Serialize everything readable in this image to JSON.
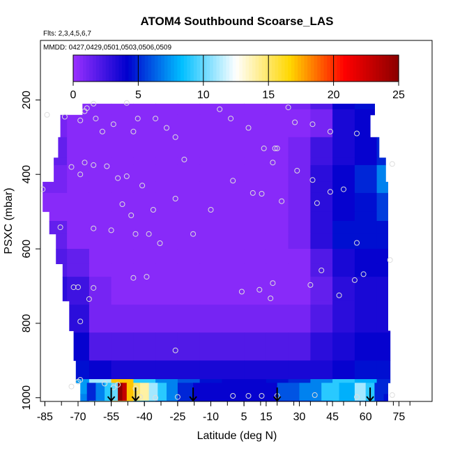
{
  "chart_data": {
    "type": "heatmap",
    "title": "ATOM4 Southbound Scoarse_LAS",
    "flights_note": "Flts: 2,3,4,5,6,7",
    "dates_note": "MMDD: 0427,0429,0501,0503,0506,0509",
    "xlabel": "Latitude (deg N)",
    "ylabel": "PSXC (mbar)",
    "xlim": [
      -87,
      90
    ],
    "ylim": [
      1010,
      40
    ],
    "x_ticks": [
      -85,
      -70,
      -55,
      -40,
      -25,
      -10,
      5,
      15,
      30,
      45,
      60,
      75
    ],
    "x_tick_labels": [
      "-85",
      "-70",
      "-55",
      "-40",
      "-25",
      "-10",
      "5",
      "15",
      "30",
      "45",
      "60",
      "75"
    ],
    "y_ticks": [
      200,
      400,
      600,
      800,
      1000
    ],
    "y_tick_labels": [
      "200",
      "400",
      "600",
      "800",
      "1000"
    ],
    "colorbar": {
      "min": 0,
      "max": 25,
      "ticks": [
        0,
        5,
        10,
        15,
        20,
        25
      ],
      "tick_labels": [
        "0",
        "5",
        "10",
        "15",
        "20",
        "25"
      ],
      "colors": [
        "#9b30ff",
        "#0000cd",
        "#00bfff",
        "#ffffff",
        "#ffd700",
        "#ff0000",
        "#8b0000"
      ]
    },
    "lat_bin_edges": [
      -87,
      -75,
      -65,
      -55,
      -45,
      -35,
      -25,
      -15,
      -5,
      5,
      15,
      25,
      35,
      45,
      55,
      65,
      72
    ],
    "pressure_bin_edges": [
      160,
      225,
      300,
      375,
      450,
      525,
      600,
      675,
      750,
      825,
      900,
      950,
      990,
      1010
    ],
    "profile_edges": [
      {
        "lat_min": -68,
        "lat_max": 64,
        "p_min": 210,
        "p_max": 240
      },
      {
        "lat_min": -78,
        "lat_max": 62,
        "p_min": 240,
        "p_max": 300
      },
      {
        "lat_min": -79,
        "lat_max": 66,
        "p_min": 300,
        "p_max": 355
      },
      {
        "lat_min": -81,
        "lat_max": 69,
        "p_min": 355,
        "p_max": 420
      },
      {
        "lat_min": -86,
        "lat_max": 70,
        "p_min": 420,
        "p_max": 500
      },
      {
        "lat_min": -83,
        "lat_max": 70,
        "p_min": 500,
        "p_max": 560
      },
      {
        "lat_min": -80,
        "lat_max": 70,
        "p_min": 560,
        "p_max": 640
      },
      {
        "lat_min": -77,
        "lat_max": 70,
        "p_min": 640,
        "p_max": 740
      },
      {
        "lat_min": -74,
        "lat_max": 70,
        "p_min": 740,
        "p_max": 820
      },
      {
        "lat_min": -72,
        "lat_max": 71,
        "p_min": 820,
        "p_max": 900
      },
      {
        "lat_min": -71,
        "lat_max": 71,
        "p_min": 900,
        "p_max": 960
      },
      {
        "lat_min": -69,
        "lat_max": 70,
        "p_min": 960,
        "p_max": 1010
      }
    ],
    "values": [
      [
        0.5,
        0.5,
        0.5,
        0.5,
        0.5,
        0.5,
        0.5,
        0.5,
        0.5,
        0.5,
        0.5,
        1.0,
        2.0,
        4.0,
        4.5,
        4.5
      ],
      [
        1.0,
        0.5,
        0.5,
        0.5,
        0.5,
        0.5,
        0.5,
        0.5,
        0.5,
        0.5,
        0.5,
        0.5,
        1.0,
        3.5,
        4.0,
        4.0
      ],
      [
        1.5,
        0.5,
        0.5,
        0.5,
        0.5,
        0.5,
        0.5,
        0.5,
        0.5,
        0.5,
        0.5,
        1.0,
        2.5,
        3.5,
        4.0,
        5.0
      ],
      [
        1.0,
        0.5,
        0.5,
        0.5,
        0.5,
        0.5,
        0.5,
        0.5,
        0.5,
        0.5,
        0.5,
        1.0,
        3.0,
        4.0,
        5.0,
        7.0
      ],
      [
        0.5,
        0.5,
        0.5,
        0.5,
        0.5,
        0.5,
        0.5,
        0.5,
        0.5,
        0.5,
        0.5,
        1.0,
        3.0,
        4.0,
        4.5,
        5.5
      ],
      [
        1.5,
        0.5,
        0.5,
        0.5,
        0.5,
        0.5,
        0.5,
        0.5,
        0.5,
        0.5,
        0.5,
        1.0,
        3.0,
        4.5,
        4.5,
        4.5
      ],
      [
        2.0,
        1.5,
        0.5,
        0.5,
        0.5,
        0.5,
        0.5,
        0.5,
        0.5,
        0.5,
        0.5,
        0.5,
        2.0,
        3.5,
        4.0,
        4.0
      ],
      [
        3.0,
        2.5,
        1.0,
        0.5,
        0.5,
        0.5,
        0.5,
        0.5,
        0.5,
        0.5,
        0.5,
        0.5,
        1.5,
        3.0,
        3.5,
        3.5
      ],
      [
        4.0,
        3.0,
        1.0,
        1.0,
        1.0,
        1.0,
        1.0,
        1.0,
        1.0,
        1.0,
        1.0,
        1.0,
        2.0,
        3.0,
        3.5,
        3.5
      ],
      [
        4.5,
        4.0,
        2.0,
        2.0,
        2.0,
        2.0,
        2.0,
        2.0,
        2.0,
        2.0,
        2.0,
        2.0,
        3.0,
        3.5,
        4.0,
        4.0
      ],
      [
        5.0,
        4.5,
        4.0,
        3.5,
        3.5,
        3.5,
        3.5,
        3.5,
        3.5,
        3.5,
        3.5,
        3.5,
        3.5,
        4.0,
        4.5,
        4.5
      ],
      [
        7.0,
        7.5,
        11.0,
        17.0,
        9.0,
        7.0,
        6.0,
        4.5,
        4.0,
        4.0,
        4.5,
        5.0,
        7.0,
        9.0,
        8.0,
        5.0
      ],
      [
        6.0,
        7.0,
        10.0,
        15.0,
        8.0,
        6.0,
        5.0,
        4.0,
        4.0,
        4.0,
        4.0,
        4.5,
        6.0,
        8.0,
        7.0,
        4.5
      ]
    ],
    "bottom_strip": [
      {
        "lat": -66,
        "v": 5
      },
      {
        "lat": -62,
        "v": 7
      },
      {
        "lat": -58,
        "v": 9
      },
      {
        "lat": -55,
        "v": 10
      },
      {
        "lat": -52,
        "v": 25
      },
      {
        "lat": -50,
        "v": 23
      },
      {
        "lat": -48,
        "v": 17
      },
      {
        "lat": -45,
        "v": 15
      },
      {
        "lat": -42,
        "v": 14
      },
      {
        "lat": -38,
        "v": 11
      },
      {
        "lat": -34,
        "v": 9
      },
      {
        "lat": -30,
        "v": 7
      },
      {
        "lat": -25,
        "v": 5
      },
      {
        "lat": -18,
        "v": 4
      },
      {
        "lat": -10,
        "v": 4
      },
      {
        "lat": 0,
        "v": 4
      },
      {
        "lat": 10,
        "v": 4
      },
      {
        "lat": 20,
        "v": 6
      },
      {
        "lat": 30,
        "v": 7
      },
      {
        "lat": 40,
        "v": 9
      },
      {
        "lat": 48,
        "v": 8
      },
      {
        "lat": 55,
        "v": 11
      },
      {
        "lat": 60,
        "v": 9
      },
      {
        "lat": 64,
        "v": 5
      },
      {
        "lat": 68,
        "v": 4
      }
    ],
    "sample_points": [
      {
        "lat": -84,
        "p": 240
      },
      {
        "lat": -76,
        "p": 245
      },
      {
        "lat": -69,
        "p": 255
      },
      {
        "lat": -67,
        "p": 230
      },
      {
        "lat": -66,
        "p": 222
      },
      {
        "lat": -63,
        "p": 210
      },
      {
        "lat": -62,
        "p": 250
      },
      {
        "lat": -59,
        "p": 285
      },
      {
        "lat": -54,
        "p": 265
      },
      {
        "lat": -48,
        "p": 208
      },
      {
        "lat": -45,
        "p": 285
      },
      {
        "lat": -43,
        "p": 250
      },
      {
        "lat": -35,
        "p": 250
      },
      {
        "lat": -30,
        "p": 275
      },
      {
        "lat": -26,
        "p": 300
      },
      {
        "lat": -6,
        "p": 225
      },
      {
        "lat": -1,
        "p": 250
      },
      {
        "lat": 7,
        "p": 275
      },
      {
        "lat": 14,
        "p": 330
      },
      {
        "lat": 19,
        "p": 330
      },
      {
        "lat": 20,
        "p": 330
      },
      {
        "lat": 25,
        "p": 220
      },
      {
        "lat": 28,
        "p": 260
      },
      {
        "lat": 36,
        "p": 265
      },
      {
        "lat": 44,
        "p": 285
      },
      {
        "lat": 56,
        "p": 290
      },
      {
        "lat": -22,
        "p": 360
      },
      {
        "lat": -73,
        "p": 380
      },
      {
        "lat": -67,
        "p": 368
      },
      {
        "lat": -63,
        "p": 375
      },
      {
        "lat": -57,
        "p": 378
      },
      {
        "lat": -69,
        "p": 400
      },
      {
        "lat": -52,
        "p": 410
      },
      {
        "lat": -48,
        "p": 405
      },
      {
        "lat": -41,
        "p": 430
      },
      {
        "lat": -86,
        "p": 440
      },
      {
        "lat": -26,
        "p": 465
      },
      {
        "lat": -36,
        "p": 495
      },
      {
        "lat": -50,
        "p": 480
      },
      {
        "lat": -46,
        "p": 510
      },
      {
        "lat": 0,
        "p": 417
      },
      {
        "lat": 9,
        "p": 450
      },
      {
        "lat": 13,
        "p": 452
      },
      {
        "lat": 18,
        "p": 368
      },
      {
        "lat": 22,
        "p": 472
      },
      {
        "lat": 29,
        "p": 390
      },
      {
        "lat": 36,
        "p": 415
      },
      {
        "lat": 38,
        "p": 477
      },
      {
        "lat": 44,
        "p": 447
      },
      {
        "lat": 50,
        "p": 440
      },
      {
        "lat": 72,
        "p": 372
      },
      {
        "lat": -10,
        "p": 495
      },
      {
        "lat": -78,
        "p": 542
      },
      {
        "lat": -63,
        "p": 545
      },
      {
        "lat": -55,
        "p": 550
      },
      {
        "lat": -44,
        "p": 560
      },
      {
        "lat": -38,
        "p": 560
      },
      {
        "lat": -33,
        "p": 585
      },
      {
        "lat": -18,
        "p": 560
      },
      {
        "lat": 56,
        "p": 584
      },
      {
        "lat": -72,
        "p": 703
      },
      {
        "lat": -70,
        "p": 703
      },
      {
        "lat": -63,
        "p": 705
      },
      {
        "lat": -65,
        "p": 735
      },
      {
        "lat": -45,
        "p": 678
      },
      {
        "lat": -39,
        "p": 675
      },
      {
        "lat": 4,
        "p": 715
      },
      {
        "lat": 12,
        "p": 710
      },
      {
        "lat": 18,
        "p": 692
      },
      {
        "lat": 17,
        "p": 733
      },
      {
        "lat": 35,
        "p": 697
      },
      {
        "lat": 40,
        "p": 658
      },
      {
        "lat": 48,
        "p": 725
      },
      {
        "lat": 59,
        "p": 668
      },
      {
        "lat": 55,
        "p": 684
      },
      {
        "lat": 71,
        "p": 630
      },
      {
        "lat": -69,
        "p": 795
      },
      {
        "lat": -26,
        "p": 873
      },
      {
        "lat": -69,
        "p": 952
      },
      {
        "lat": -70,
        "p": 957
      },
      {
        "lat": -73,
        "p": 970
      },
      {
        "lat": -58,
        "p": 962
      },
      {
        "lat": -54,
        "p": 972
      },
      {
        "lat": -52,
        "p": 965
      },
      {
        "lat": -44,
        "p": 975
      },
      {
        "lat": -42,
        "p": 998
      },
      {
        "lat": -35,
        "p": 1000
      },
      {
        "lat": -25,
        "p": 998
      },
      {
        "lat": 0,
        "p": 995
      },
      {
        "lat": 7,
        "p": 995
      },
      {
        "lat": 13,
        "p": 995
      },
      {
        "lat": 20,
        "p": 995
      },
      {
        "lat": 37,
        "p": 993
      },
      {
        "lat": 56,
        "p": 998
      },
      {
        "lat": 72,
        "p": 993
      }
    ],
    "arrow_lats": [
      -55,
      -44,
      -18,
      20,
      62
    ]
  }
}
